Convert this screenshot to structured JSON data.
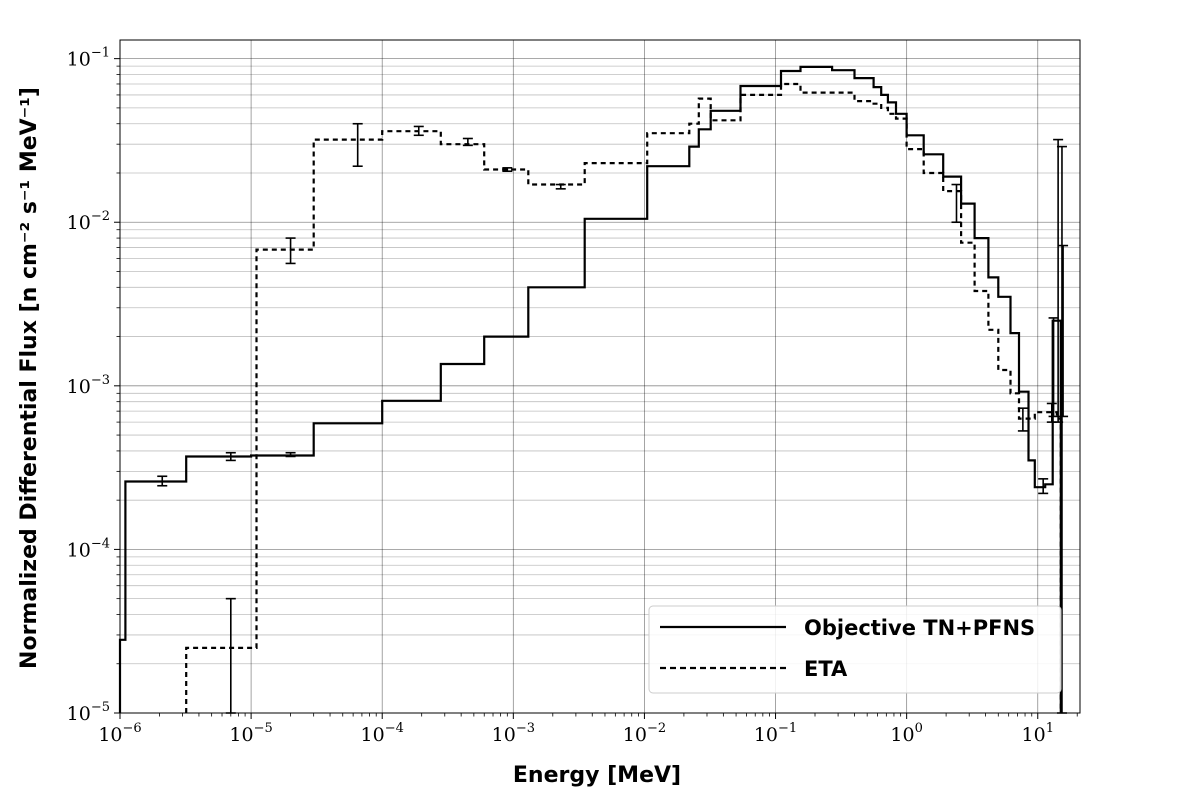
{
  "chart_data": {
    "type": "line",
    "title": "",
    "xlabel": "Energy [MeV]",
    "ylabel": "Normalized Differential Flux [n cm⁻² s⁻¹ MeV⁻¹]",
    "xscale": "log",
    "yscale": "log",
    "xlim": [
      1e-06,
      21
    ],
    "ylim": [
      1e-05,
      0.13
    ],
    "grid": "major and minor",
    "legend_position": "lower-right",
    "x_ticks": [
      {
        "base": "10",
        "exp": "−6",
        "value": 1e-06
      },
      {
        "base": "10",
        "exp": "−5",
        "value": 1e-05
      },
      {
        "base": "10",
        "exp": "−4",
        "value": 0.0001
      },
      {
        "base": "10",
        "exp": "−3",
        "value": 0.001
      },
      {
        "base": "10",
        "exp": "−2",
        "value": 0.01
      },
      {
        "base": "10",
        "exp": "−1",
        "value": 0.1
      },
      {
        "base": "10",
        "exp": "0",
        "value": 1
      },
      {
        "base": "10",
        "exp": "1",
        "value": 10
      }
    ],
    "y_ticks": [
      {
        "base": "10",
        "exp": "−5",
        "value": 1e-05
      },
      {
        "base": "10",
        "exp": "−4",
        "value": 0.0001
      },
      {
        "base": "10",
        "exp": "−3",
        "value": 0.001
      },
      {
        "base": "10",
        "exp": "−2",
        "value": 0.01
      },
      {
        "base": "10",
        "exp": "−1",
        "value": 0.1
      }
    ],
    "series": [
      {
        "name": "Objective TN+PFNS",
        "style": "solid",
        "color": "#000000",
        "edges": [
          1e-06,
          1.1e-06,
          3.2e-06,
          1e-05,
          3e-05,
          0.0001,
          0.00028,
          0.0006,
          0.0013,
          0.0035,
          0.0105,
          0.022,
          0.026,
          0.032,
          0.054,
          0.11,
          0.155,
          0.27,
          0.4,
          0.56,
          0.64,
          0.72,
          0.83,
          1.0,
          1.35,
          1.9,
          2.6,
          3.3,
          4.2,
          5.0,
          6.2,
          7.2,
          8.5,
          9.5,
          11.4,
          13.0,
          15.0
        ],
        "values": [
          2.8e-05,
          0.00026,
          0.00037,
          0.000375,
          0.00059,
          0.00081,
          0.00136,
          0.002,
          0.004,
          0.0105,
          0.022,
          0.029,
          0.037,
          0.048,
          0.068,
          0.084,
          0.089,
          0.085,
          0.076,
          0.067,
          0.06,
          0.054,
          0.046,
          0.034,
          0.026,
          0.019,
          0.013,
          0.008,
          0.0046,
          0.0035,
          0.0021,
          0.00092,
          0.00035,
          0.00024,
          0.00025,
          0.0025
        ],
        "error_bars": [
          {
            "x": 2.1e-06,
            "y": 0.00026,
            "low": 0.000245,
            "high": 0.00028
          },
          {
            "x": 7e-06,
            "y": 0.00037,
            "low": 0.00035,
            "high": 0.00039
          },
          {
            "x": 2e-05,
            "y": 0.00038,
            "low": 0.00037,
            "high": 0.00039
          },
          {
            "x": 11.0,
            "y": 0.00024,
            "low": 0.00022,
            "high": 0.00027
          },
          {
            "x": 13.2,
            "y": 0.0025,
            "low": 0.00065,
            "high": 0.0026
          },
          {
            "x": 15.3,
            "y": 0.026,
            "low": 1e-05,
            "high": 0.029
          }
        ]
      },
      {
        "name": "ETA",
        "style": "dashed",
        "color": "#000000",
        "edges": [
          3.2e-06,
          1.1e-05,
          3e-05,
          0.0001,
          0.00028,
          0.0006,
          0.0013,
          0.0035,
          0.0105,
          0.022,
          0.026,
          0.032,
          0.054,
          0.11,
          0.155,
          0.27,
          0.4,
          0.56,
          0.64,
          0.72,
          0.83,
          1.0,
          1.35,
          1.9,
          2.6,
          3.3,
          4.2,
          5.0,
          6.2,
          7.2,
          8.5,
          9.5,
          11.4,
          13.0,
          14.0,
          15.0
        ],
        "values": [
          2.5e-05,
          0.0068,
          0.032,
          0.036,
          0.03,
          0.021,
          0.017,
          0.023,
          0.035,
          0.04,
          0.057,
          0.042,
          0.06,
          0.07,
          0.062,
          0.062,
          0.055,
          0.053,
          0.05,
          0.046,
          0.043,
          0.028,
          0.02,
          0.0155,
          0.0075,
          0.0038,
          0.0022,
          0.00125,
          0.0009,
          0.00063,
          0.00063,
          0.00069,
          0.00069,
          0.00069,
          0.00063
        ],
        "error_bars": [
          {
            "x": 7e-06,
            "y": 2.5e-05,
            "low": 1e-05,
            "high": 5e-05
          },
          {
            "x": 2e-05,
            "y": 0.0067,
            "low": 0.0056,
            "high": 0.008
          },
          {
            "x": 6.5e-05,
            "y": 0.03,
            "low": 0.022,
            "high": 0.04
          },
          {
            "x": 0.00019,
            "y": 0.036,
            "low": 0.034,
            "high": 0.0385
          },
          {
            "x": 0.00045,
            "y": 0.031,
            "low": 0.0295,
            "high": 0.0325
          },
          {
            "x": 0.0009,
            "y": 0.021,
            "low": 0.0205,
            "high": 0.0215
          },
          {
            "x": 0.0023,
            "y": 0.0165,
            "low": 0.016,
            "high": 0.017
          },
          {
            "x": 2.4,
            "y": 0.016,
            "low": 0.01,
            "high": 0.017
          },
          {
            "x": 7.7,
            "y": 0.00063,
            "low": 0.00053,
            "high": 0.00073
          },
          {
            "x": 12.8,
            "y": 0.00069,
            "low": 0.0006,
            "high": 0.00078
          },
          {
            "x": 14.3,
            "y": 0.00065,
            "low": 0.0006,
            "high": 0.032
          },
          {
            "x": 15.6,
            "y": 0.007,
            "low": 0.00065,
            "high": 0.0072
          }
        ]
      }
    ]
  }
}
